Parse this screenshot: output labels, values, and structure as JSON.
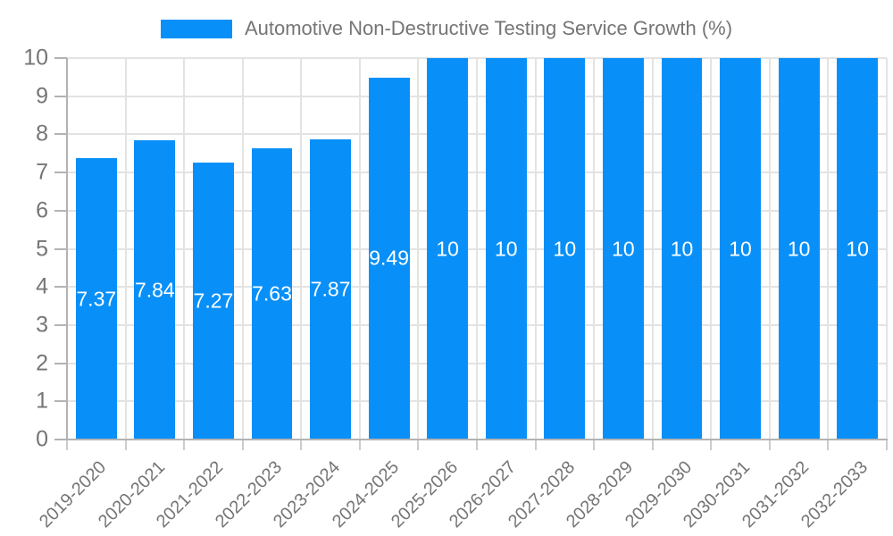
{
  "legend": {
    "label": "Automotive Non-Destructive Testing Service Growth (%)"
  },
  "colors": {
    "bar": "#0990f8",
    "grid": "#e3e3e3",
    "axis": "#b3b3b3",
    "tick_x": "#cccccc",
    "tick_y": "#b3b3b3",
    "text": "#757575",
    "bar_label": "#ffffff",
    "background": "#ffffff"
  },
  "chart_data": {
    "type": "bar",
    "title": "Automotive Non-Destructive Testing Service Growth (%)",
    "categories": [
      "2019-2020",
      "2020-2021",
      "2021-2022",
      "2022-2023",
      "2023-2024",
      "2024-2025",
      "2025-2026",
      "2026-2027",
      "2027-2028",
      "2028-2029",
      "2029-2030",
      "2030-2031",
      "2031-2032",
      "2032-2033"
    ],
    "values": [
      7.37,
      7.84,
      7.27,
      7.63,
      7.87,
      9.49,
      10,
      10,
      10,
      10,
      10,
      10,
      10,
      10
    ],
    "bar_labels": [
      "7.37",
      "7.84",
      "7.27",
      "7.63",
      "7.87",
      "9.49",
      "10",
      "10",
      "10",
      "10",
      "10",
      "10",
      "10",
      "10"
    ],
    "xlabel": "",
    "ylabel": "",
    "ylim": [
      0,
      10
    ],
    "ytick_step": 1,
    "grid": true,
    "legend_position": "top",
    "bar_label_position": "center",
    "x_label_rotation_deg": -45
  }
}
